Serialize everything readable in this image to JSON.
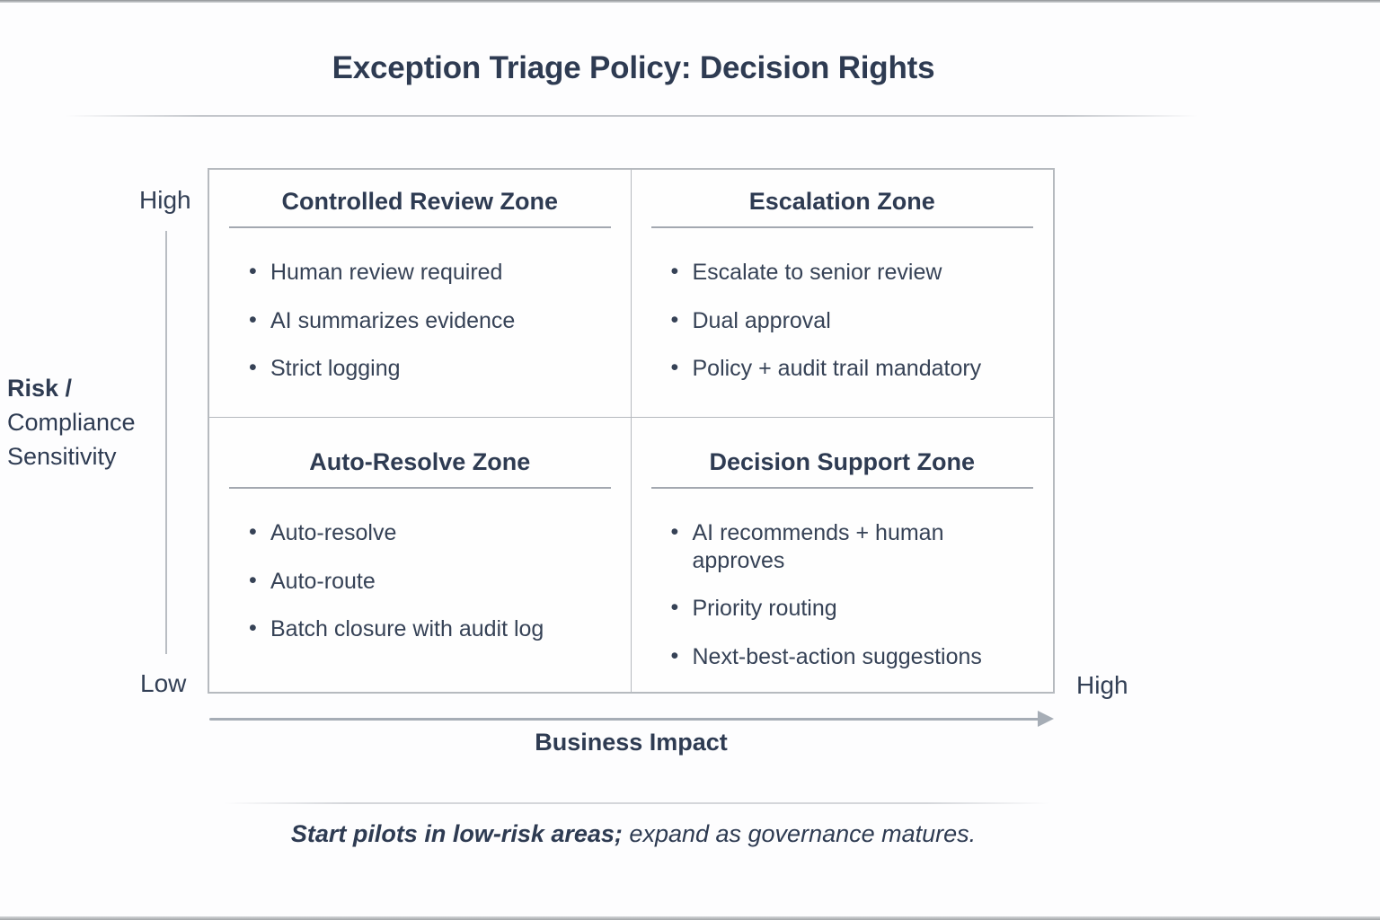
{
  "title": "Exception Triage Policy: Decision Rights",
  "matrix": {
    "quadrants": [
      {
        "title": "Controlled Review Zone",
        "bullets": [
          "Human review required",
          "AI summarizes evidence",
          "Strict logging"
        ]
      },
      {
        "title": "Escalation Zone",
        "bullets": [
          "Escalate to senior review",
          "Dual approval",
          "Policy + audit trail mandatory"
        ]
      },
      {
        "title": "Auto-Resolve Zone",
        "bullets": [
          "Auto-resolve",
          "Auto-route",
          "Batch closure with audit log"
        ]
      },
      {
        "title": "Decision Support Zone",
        "bullets": [
          "AI recommends + human approves",
          "Priority routing",
          "Next-best-action suggestions"
        ]
      }
    ]
  },
  "axes": {
    "y": {
      "title_lines": [
        "Risk /",
        "Compliance",
        "Sensitivity"
      ],
      "top_label": "High",
      "bottom_label": "Low"
    },
    "x": {
      "title": "Business Impact",
      "right_label": "High"
    }
  },
  "footer": {
    "lead": "Start pilots in low-risk areas;",
    "rest": " expand as governance matures."
  },
  "colors": {
    "text_primary": "#2e3b52",
    "text_body": "#364256",
    "border_gray": "#b6babf",
    "arrow_gray": "#a6adb6"
  }
}
